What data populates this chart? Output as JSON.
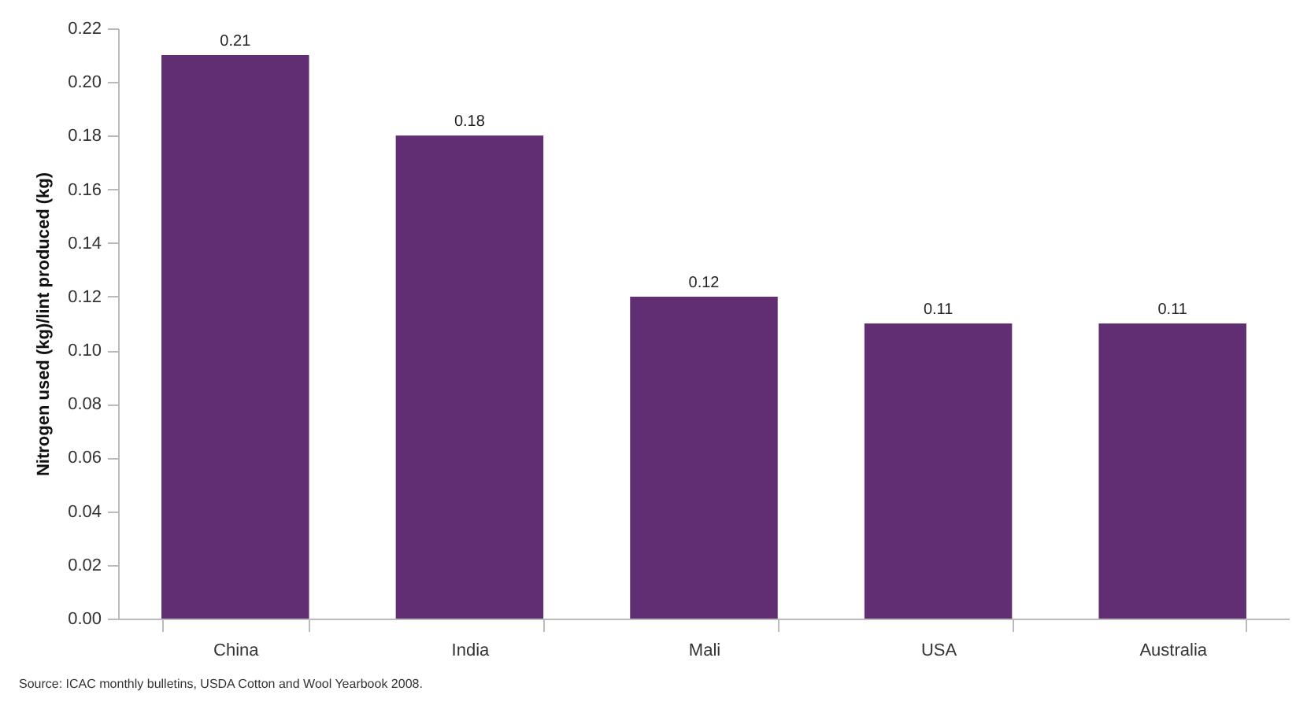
{
  "chart_data": {
    "type": "bar",
    "ylabel": "Nitrogen used (kg)/lint produced (kg)",
    "categories": [
      "China",
      "India",
      "Mali",
      "USA",
      "Australia"
    ],
    "values": [
      0.21,
      0.18,
      0.12,
      0.11,
      0.11
    ],
    "color": "#612e73",
    "ylim": [
      0,
      0.22
    ],
    "yticks": [
      {
        "value": 0,
        "label": "0.00"
      },
      {
        "value": 0.02,
        "label": "0.02"
      },
      {
        "value": 0.04,
        "label": "0.04"
      },
      {
        "value": 0.06,
        "label": "0.06"
      },
      {
        "value": 0.08,
        "label": "0.08"
      },
      {
        "value": 0.1,
        "label": "0.10"
      },
      {
        "value": 0.12,
        "label": "0.12"
      },
      {
        "value": 0.14,
        "label": "0.14"
      },
      {
        "value": 0.16,
        "label": "0.16"
      },
      {
        "value": 0.18,
        "label": "0.18"
      },
      {
        "value": 0.2,
        "label": "0.20"
      },
      {
        "value": 0.22,
        "label": "0.22"
      }
    ],
    "grid": false,
    "data_labels": true,
    "annotations": [
      "Source: ICAC monthly bulletins, USDA Cotton and Wool Yearbook 2008."
    ]
  }
}
